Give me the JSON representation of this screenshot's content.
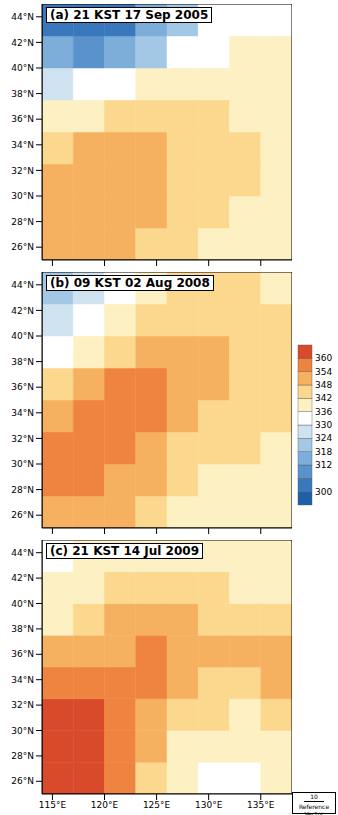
{
  "chart_data": [
    {
      "type": "heatmap",
      "title": "(a) 21 KST 17 Sep 2005",
      "tick_labels": "y",
      "xlim": [
        114,
        138
      ],
      "ylim": [
        25,
        45
      ],
      "xticks": [
        {
          "value": 115,
          "label": "115°E"
        },
        {
          "value": 120,
          "label": "120°E"
        },
        {
          "value": 125,
          "label": "125°E"
        },
        {
          "value": 130,
          "label": "130°E"
        },
        {
          "value": 135,
          "label": "135°E"
        }
      ],
      "yticks": [
        {
          "value": 26,
          "label": "26°N"
        },
        {
          "value": 28,
          "label": "28°N"
        },
        {
          "value": 30,
          "label": "30°N"
        },
        {
          "value": 32,
          "label": "32°N"
        },
        {
          "value": 34,
          "label": "34°N"
        },
        {
          "value": 36,
          "label": "36°N"
        },
        {
          "value": 38,
          "label": "38°N"
        },
        {
          "value": 40,
          "label": "40°N"
        },
        {
          "value": 42,
          "label": "42°N"
        },
        {
          "value": 44,
          "label": "44°N"
        }
      ],
      "lon_edges": [
        114,
        117,
        120,
        123,
        126,
        129,
        132,
        135,
        138
      ],
      "lat_edges": [
        25,
        27.5,
        30,
        32.5,
        35,
        37.5,
        40,
        42.5,
        45
      ],
      "cells": [
        [
          348,
          350,
          348,
          345,
          342,
          340,
          340,
          338
        ],
        [
          350,
          352,
          350,
          348,
          345,
          342,
          340,
          338
        ],
        [
          352,
          350,
          350,
          348,
          346,
          344,
          342,
          340
        ],
        [
          345,
          348,
          348,
          348,
          346,
          344,
          342,
          340
        ],
        [
          336,
          338,
          342,
          344,
          344,
          342,
          340,
          338
        ],
        [
          328,
          330,
          334,
          338,
          340,
          340,
          338,
          336
        ],
        [
          312,
          310,
          315,
          322,
          330,
          334,
          336,
          336
        ],
        [
          305,
          302,
          305,
          312,
          320,
          330,
          334,
          335
        ]
      ]
    },
    {
      "type": "heatmap",
      "title": "(b) 09 KST 02 Aug 2008",
      "tick_labels": "y",
      "xlim": [
        114,
        138
      ],
      "ylim": [
        25,
        45
      ],
      "xticks": [
        {
          "value": 115,
          "label": "115°E"
        },
        {
          "value": 120,
          "label": "120°E"
        },
        {
          "value": 125,
          "label": "125°E"
        },
        {
          "value": 130,
          "label": "130°E"
        },
        {
          "value": 135,
          "label": "135°E"
        }
      ],
      "yticks": [
        {
          "value": 26,
          "label": "26°N"
        },
        {
          "value": 28,
          "label": "28°N"
        },
        {
          "value": 30,
          "label": "30°N"
        },
        {
          "value": 32,
          "label": "32°N"
        },
        {
          "value": 34,
          "label": "34°N"
        },
        {
          "value": 36,
          "label": "36°N"
        },
        {
          "value": 38,
          "label": "38°N"
        },
        {
          "value": 40,
          "label": "40°N"
        },
        {
          "value": 42,
          "label": "42°N"
        },
        {
          "value": 44,
          "label": "44°N"
        }
      ],
      "lon_edges": [
        114,
        117,
        120,
        123,
        126,
        129,
        132,
        135,
        138
      ],
      "lat_edges": [
        25,
        27.5,
        30,
        32.5,
        35,
        37.5,
        40,
        42.5,
        45
      ],
      "cells": [
        [
          350,
          352,
          350,
          345,
          340,
          338,
          336,
          336
        ],
        [
          354,
          354,
          352,
          348,
          344,
          340,
          338,
          336
        ],
        [
          355,
          356,
          354,
          350,
          346,
          344,
          342,
          340
        ],
        [
          352,
          354,
          356,
          354,
          350,
          346,
          344,
          342
        ],
        [
          345,
          350,
          354,
          355,
          352,
          348,
          346,
          344
        ],
        [
          334,
          340,
          346,
          350,
          350,
          348,
          346,
          344
        ],
        [
          326,
          330,
          336,
          342,
          346,
          346,
          344,
          342
        ],
        [
          322,
          326,
          332,
          338,
          342,
          344,
          342,
          340
        ]
      ]
    },
    {
      "type": "heatmap",
      "title": "(c) 21 KST 14 Jul 2009",
      "xlim": [
        114,
        138
      ],
      "ylim": [
        25,
        45
      ],
      "xticks": [
        {
          "value": 115,
          "label": "115°E"
        },
        {
          "value": 120,
          "label": "120°E"
        },
        {
          "value": 125,
          "label": "125°E"
        },
        {
          "value": 130,
          "label": "130°E"
        },
        {
          "value": 135,
          "label": "135°E"
        }
      ],
      "yticks": [
        {
          "value": 26,
          "label": "26°N"
        },
        {
          "value": 28,
          "label": "28°N"
        },
        {
          "value": 30,
          "label": "30°N"
        },
        {
          "value": 32,
          "label": "32°N"
        },
        {
          "value": 34,
          "label": "34°N"
        },
        {
          "value": 36,
          "label": "36°N"
        },
        {
          "value": 38,
          "label": "38°N"
        },
        {
          "value": 40,
          "label": "40°N"
        },
        {
          "value": 42,
          "label": "42°N"
        },
        {
          "value": 44,
          "label": "44°N"
        }
      ],
      "lon_edges": [
        114,
        117,
        120,
        123,
        126,
        129,
        132,
        135,
        138
      ],
      "lat_edges": [
        25,
        27.5,
        30,
        32.5,
        35,
        37.5,
        40,
        42.5,
        45
      ],
      "cells": [
        [
          362,
          360,
          354,
          344,
          338,
          334,
          334,
          336
        ],
        [
          362,
          362,
          356,
          348,
          340,
          336,
          336,
          338
        ],
        [
          360,
          360,
          356,
          352,
          346,
          342,
          340,
          342
        ],
        [
          356,
          356,
          354,
          354,
          350,
          346,
          346,
          348
        ],
        [
          348,
          350,
          352,
          354,
          352,
          350,
          350,
          352
        ],
        [
          340,
          344,
          348,
          350,
          348,
          346,
          346,
          344
        ],
        [
          336,
          340,
          342,
          344,
          344,
          342,
          340,
          338
        ],
        [
          334,
          336,
          338,
          340,
          340,
          338,
          338,
          336
        ]
      ]
    }
  ],
  "colorbar": {
    "levels": [
      300,
      306,
      312,
      318,
      324,
      330,
      336,
      342,
      348,
      354,
      360
    ],
    "ticks": [
      300,
      312,
      318,
      324,
      330,
      336,
      342,
      348,
      354,
      360
    ],
    "colors": [
      "#1f5fa8",
      "#3a78bd",
      "#5a93cc",
      "#7daed9",
      "#a3c8e5",
      "#cfe2f0",
      "#ffffff",
      "#fdf0c2",
      "#fbd88e",
      "#f6b160",
      "#ef8440",
      "#d94a2a"
    ]
  },
  "reference_vector": {
    "value": 10,
    "label": "Reference Vector"
  }
}
